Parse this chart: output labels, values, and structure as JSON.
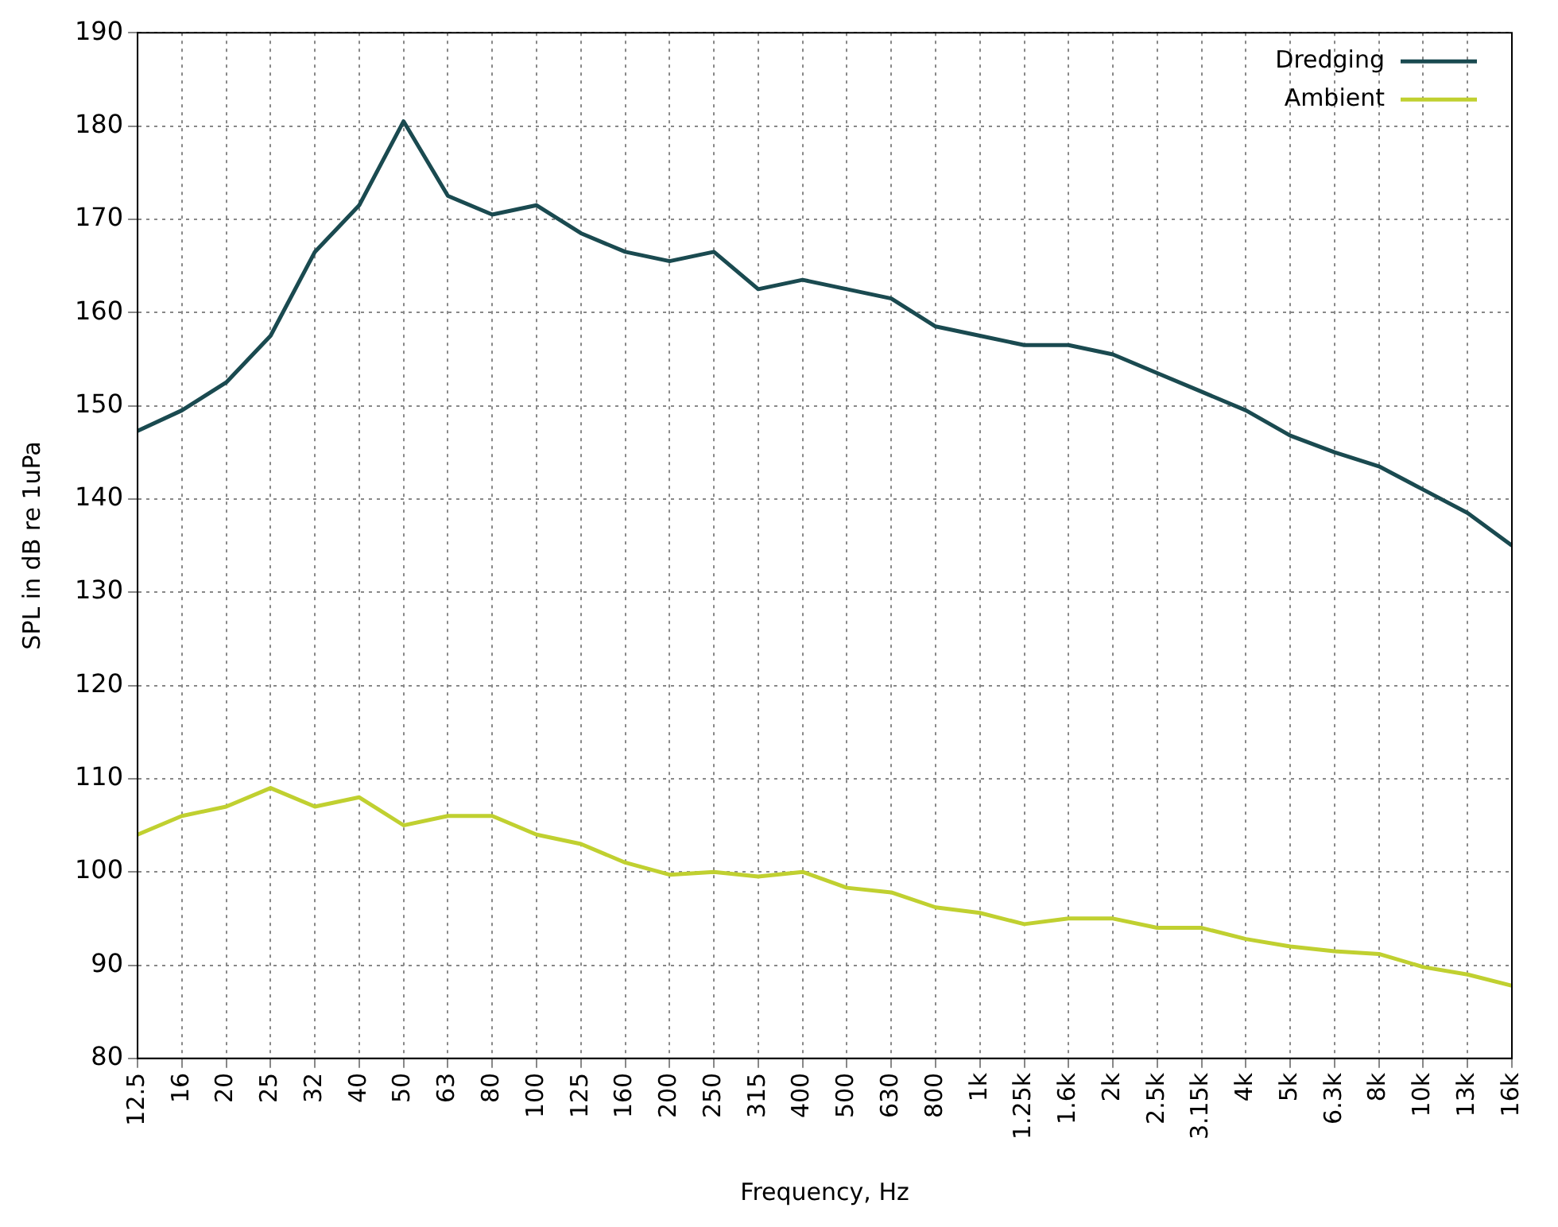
{
  "chart_data": {
    "type": "line",
    "xlabel": "Frequency, Hz",
    "ylabel": "SPL in dB re 1uPa",
    "categories": [
      "12.5",
      "16",
      "20",
      "25",
      "32",
      "40",
      "50",
      "63",
      "80",
      "100",
      "125",
      "160",
      "200",
      "250",
      "315",
      "400",
      "500",
      "630",
      "800",
      "1k",
      "1.25k",
      "1.6k",
      "2k",
      "2.5k",
      "3.15k",
      "4k",
      "5k",
      "6.3k",
      "8k",
      "10k",
      "13k",
      "16k"
    ],
    "series": [
      {
        "name": "Dredging",
        "color": "#1a4a50",
        "values": [
          147.3,
          149.5,
          152.5,
          157.5,
          166.5,
          171.5,
          180.5,
          172.5,
          170.5,
          171.5,
          168.5,
          166.5,
          165.5,
          166.5,
          162.5,
          163.5,
          162.5,
          161.5,
          158.5,
          157.5,
          156.5,
          156.5,
          155.5,
          153.5,
          151.5,
          149.5,
          146.8,
          145,
          143.5,
          141,
          138.5,
          135
        ]
      },
      {
        "name": "Ambient",
        "color": "#c0d030",
        "values": [
          104,
          106,
          107,
          109,
          107,
          108,
          105,
          106,
          106,
          104,
          103,
          101,
          99.7,
          100,
          99.5,
          100,
          98.3,
          97.8,
          96.2,
          95.6,
          94.4,
          95,
          95,
          94,
          94,
          92.8,
          92,
          91.5,
          91.2,
          89.8,
          89,
          87.8
        ]
      }
    ],
    "ylim": [
      80,
      190
    ],
    "yticks": [
      80,
      90,
      100,
      110,
      120,
      130,
      140,
      150,
      160,
      170,
      180,
      190
    ],
    "grid": true,
    "legend": "top right",
    "marker": "none",
    "line_style": "solid"
  }
}
